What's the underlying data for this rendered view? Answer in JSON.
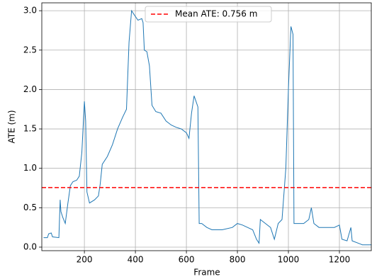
{
  "chart_data": {
    "type": "line",
    "xlabel": "Frame",
    "ylabel": "ATE (m)",
    "xlim": [
      33,
      1325
    ],
    "ylim": [
      -0.045,
      3.1
    ],
    "xticks": [
      200,
      400,
      600,
      800,
      1000,
      1200
    ],
    "yticks": [
      {
        "value": 0,
        "label": "0.0"
      },
      0.5,
      {
        "value": 1,
        "label": "1.0"
      },
      1.5,
      {
        "value": 2,
        "label": "2.0"
      },
      2.5,
      {
        "value": 3,
        "label": "3.0"
      }
    ],
    "grid": true,
    "legend": "upper center",
    "mean": {
      "name": "Mean ATE: 0.756 m",
      "value": 0.756,
      "color": "#ff0000"
    },
    "series": [
      {
        "color": "#1f77b4",
        "x": [
          40,
          55,
          60,
          70,
          75,
          100,
          105,
          108,
          115,
          125,
          135,
          145,
          155,
          170,
          180,
          190,
          200,
          205,
          210,
          220,
          240,
          255,
          262,
          270,
          290,
          310,
          330,
          350,
          365,
          375,
          385,
          395,
          410,
          425,
          430,
          435,
          445,
          455,
          465,
          480,
          500,
          520,
          540,
          560,
          580,
          600,
          610,
          620,
          630,
          645,
          650,
          660,
          680,
          700,
          740,
          780,
          800,
          820,
          840,
          860,
          875,
          885,
          890,
          910,
          930,
          945,
          960,
          975,
          990,
          1000,
          1010,
          1018,
          1022,
          1040,
          1060,
          1080,
          1090,
          1100,
          1120,
          1180,
          1200,
          1210,
          1230,
          1245,
          1250,
          1290,
          1325
        ],
        "values": [
          0.12,
          0.12,
          0.17,
          0.18,
          0.13,
          0.12,
          0.6,
          0.45,
          0.38,
          0.3,
          0.55,
          0.78,
          0.83,
          0.85,
          0.9,
          1.2,
          1.85,
          1.6,
          0.7,
          0.56,
          0.6,
          0.65,
          0.8,
          1.05,
          1.15,
          1.3,
          1.5,
          1.65,
          1.75,
          2.6,
          3.0,
          2.95,
          2.88,
          2.9,
          2.85,
          2.5,
          2.48,
          2.3,
          1.8,
          1.72,
          1.7,
          1.6,
          1.55,
          1.52,
          1.5,
          1.45,
          1.38,
          1.7,
          1.92,
          1.78,
          0.3,
          0.3,
          0.25,
          0.22,
          0.22,
          0.25,
          0.3,
          0.28,
          0.25,
          0.22,
          0.1,
          0.05,
          0.35,
          0.3,
          0.25,
          0.1,
          0.3,
          0.35,
          1.0,
          2.0,
          2.8,
          2.7,
          0.3,
          0.3,
          0.3,
          0.35,
          0.5,
          0.3,
          0.25,
          0.25,
          0.28,
          0.1,
          0.08,
          0.25,
          0.08,
          0.03,
          0.03
        ]
      }
    ]
  }
}
